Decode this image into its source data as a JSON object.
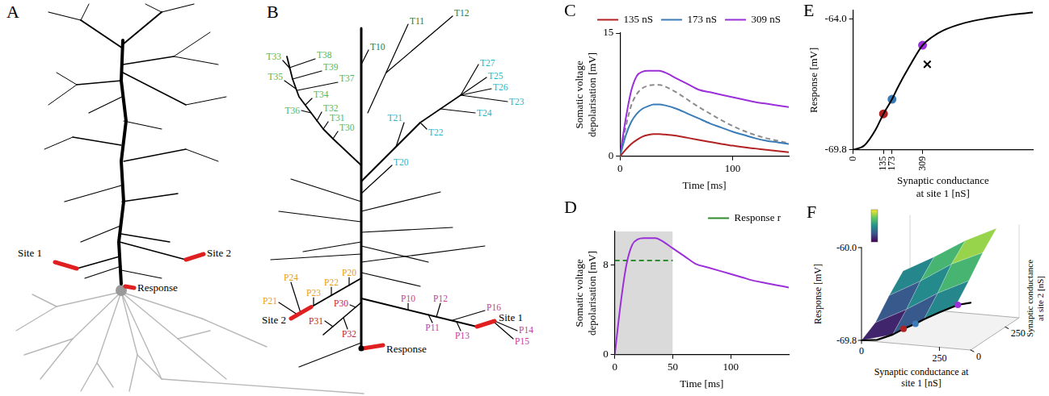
{
  "chart_data": [
    {
      "panel": "C",
      "type": "line",
      "xlabel": "Time [ms]",
      "ylabel": "Somatic voltage depolarisation [mV]",
      "x": [
        0,
        5,
        10,
        15,
        20,
        25,
        30,
        35,
        40,
        50,
        60,
        70,
        80,
        90,
        100,
        110,
        120,
        130,
        140,
        150
      ],
      "xlim": [
        0,
        150
      ],
      "xticks": [
        0,
        100
      ],
      "ylim": [
        0,
        15
      ],
      "yticks": [
        0,
        15
      ],
      "grid": false,
      "legend": "top",
      "series": [
        {
          "name": "135 nS",
          "color": "#b22222",
          "values": [
            0,
            0.8,
            1.5,
            2.0,
            2.4,
            2.6,
            2.7,
            2.7,
            2.65,
            2.5,
            2.25,
            2.0,
            1.75,
            1.5,
            1.3,
            1.1,
            0.95,
            0.8,
            0.65,
            0.5
          ]
        },
        {
          "name": "173 nS",
          "color": "#3a7cb8",
          "values": [
            0,
            2.5,
            4.2,
            5.2,
            5.8,
            6.1,
            6.3,
            6.3,
            6.2,
            5.8,
            5.2,
            4.6,
            4.0,
            3.5,
            3.0,
            2.6,
            2.2,
            1.9,
            1.7,
            1.5
          ]
        },
        {
          "name": "309 nS",
          "color": "#9b30d9",
          "values": [
            0,
            4.5,
            8.0,
            9.8,
            10.3,
            10.4,
            10.4,
            10.4,
            10.2,
            9.5,
            8.8,
            8.1,
            7.8,
            7.5,
            7.2,
            6.9,
            6.6,
            6.4,
            6.2,
            6.0
          ]
        },
        {
          "color": "#8c8c8c",
          "line_style": "dashed",
          "values": [
            0,
            3.5,
            6.2,
            7.6,
            8.3,
            8.6,
            8.7,
            8.7,
            8.5,
            7.8,
            6.9,
            6.0,
            5.2,
            4.4,
            3.7,
            3.1,
            2.6,
            2.2,
            1.9,
            1.6
          ]
        }
      ]
    },
    {
      "panel": "D",
      "type": "line",
      "xlabel": "Time [ms]",
      "ylabel": "Somatic voltage depolarisation [mV]",
      "x": [
        0,
        5,
        10,
        15,
        20,
        25,
        30,
        35,
        40,
        50,
        60,
        70,
        80,
        90,
        100,
        110,
        120,
        130,
        140,
        150
      ],
      "xlim": [
        0,
        150
      ],
      "xticks": [
        0,
        50,
        100
      ],
      "ylim": [
        0,
        11
      ],
      "yticks": [
        0,
        8
      ],
      "grid": false,
      "legend": "top",
      "shaded_x": [
        0,
        50
      ],
      "series": [
        {
          "color": "#9b30d9",
          "values": [
            0,
            4.5,
            8.0,
            9.8,
            10.3,
            10.4,
            10.4,
            10.4,
            10.2,
            9.5,
            8.8,
            8.1,
            7.8,
            7.5,
            7.2,
            6.9,
            6.6,
            6.4,
            6.2,
            6.0
          ]
        },
        {
          "name": "Response r",
          "color": "#2e8b2e",
          "line_style": "dashed",
          "x": [
            0,
            50
          ],
          "values": [
            8.4,
            8.4
          ]
        }
      ]
    },
    {
      "panel": "E",
      "type": "line",
      "xlabel": "Synaptic conductance at site 1 [nS]",
      "ylabel": "Response [mV]",
      "xlim": [
        0,
        800
      ],
      "xticks": [
        0,
        135,
        173,
        309
      ],
      "ylim": [
        -69.8,
        -63.6
      ],
      "yticks": [
        -69.8,
        {
          "value": -64,
          "label": "-64.0"
        }
      ],
      "grid": false,
      "series": [
        {
          "color": "#000000",
          "x": [
            0,
            50,
            100,
            135,
            173,
            200,
            250,
            309,
            350,
            400,
            500,
            600,
            700,
            800
          ],
          "values": [
            -69.8,
            -69.6,
            -68.9,
            -68.2,
            -67.55,
            -67.0,
            -66.1,
            -65.15,
            -64.8,
            -64.5,
            -64.15,
            -63.95,
            -63.8,
            -63.7
          ]
        },
        {
          "type": "scatter",
          "marker": "circle",
          "colors": [
            "#b22222",
            "#3a7cb8",
            "#9b30d9"
          ],
          "x": [
            135,
            173,
            309
          ],
          "values": [
            -68.2,
            -67.55,
            -65.15
          ]
        },
        {
          "type": "scatter",
          "marker": "cross",
          "color": "#000000",
          "x": [
            330
          ],
          "values": [
            -66.0
          ]
        }
      ]
    }
  ],
  "diagrams": [
    {
      "panel": "A",
      "labels": {
        "site_1": "Site 1",
        "site_2": "Site 2",
        "response": "Response"
      }
    },
    {
      "panel": "B",
      "labels": {
        "site_1": "Site 1",
        "site_2": "Site 2",
        "response": "Response"
      },
      "groups": [
        {
          "color": "#2e7d32",
          "labels": [
            "T10",
            "T11",
            "T12"
          ]
        },
        {
          "color": "#26b5c9",
          "labels": [
            "T20",
            "T21",
            "T22",
            "T23",
            "T24",
            "T25",
            "T26",
            "T27"
          ]
        },
        {
          "color": "#55b855",
          "labels": [
            "T30",
            "T31",
            "T32",
            "T33",
            "T34",
            "T35",
            "T36",
            "T37",
            "T38",
            "T39"
          ]
        },
        {
          "color": "#e6a11a",
          "labels": [
            "P20",
            "P21",
            "P22",
            "P23",
            "P24"
          ]
        },
        {
          "color": "#c0282d",
          "labels": [
            "P30",
            "P31",
            "P32"
          ]
        },
        {
          "color": "#c23f9c",
          "labels": [
            "P10",
            "P11",
            "P12",
            "P13",
            "P14",
            "P15",
            "P16"
          ]
        }
      ]
    },
    {
      "panel": "F",
      "type": "surface",
      "zlabel": "Response [mV]",
      "xlabel": "Synaptic conductance at site 1 [nS]",
      "ylabel": "Synaptic conductance at site 2 [nS]",
      "xlim": [
        0,
        350
      ],
      "xticks": [
        0,
        250
      ],
      "ylim": [
        0,
        350
      ],
      "yticks": [
        0,
        250
      ],
      "zlim": [
        -69.8,
        -60
      ],
      "zticks": [
        {
          "value": -60,
          "label": "-60.0"
        },
        -69.8
      ],
      "colorbar_range": [
        -69.8,
        -60
      ],
      "x": [
        0,
        100,
        200,
        300
      ],
      "y": [
        0,
        100,
        200,
        300
      ],
      "z": [
        [
          -69.8,
          -68.9,
          -67.0,
          -65.4
        ],
        [
          -68.9,
          -67.2,
          -65.2,
          -63.6
        ],
        [
          -67.0,
          -65.2,
          -63.1,
          -61.6
        ],
        [
          -65.4,
          -63.6,
          -61.6,
          -60.0
        ]
      ],
      "curve": {
        "color": "#000000",
        "x": [
          0,
          50,
          100,
          135,
          173,
          200,
          250,
          309,
          350
        ],
        "values": [
          -69.8,
          -69.6,
          -68.9,
          -68.2,
          -67.55,
          -67.0,
          -66.1,
          -65.15,
          -64.8
        ]
      },
      "points": {
        "colors": [
          "#b22222",
          "#3a7cb8",
          "#9b30d9"
        ],
        "x": [
          135,
          173,
          309
        ],
        "values": [
          -68.2,
          -67.55,
          -65.15
        ]
      }
    }
  ]
}
